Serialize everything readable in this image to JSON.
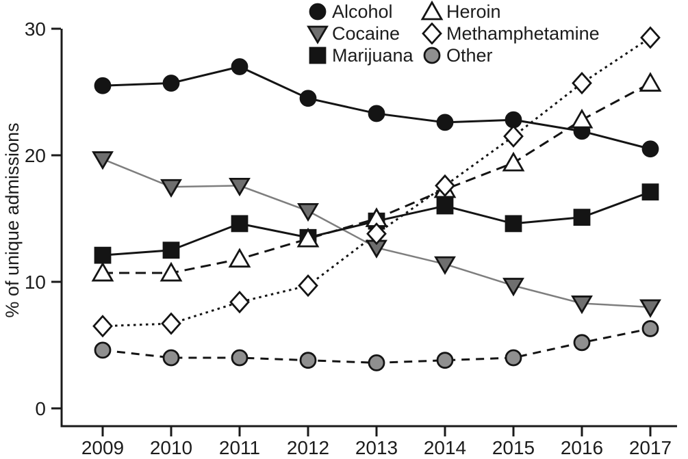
{
  "chart_data": {
    "type": "line",
    "title": "",
    "xlabel": "",
    "ylabel": "% of unique admissions",
    "categories": [
      "2009",
      "2010",
      "2011",
      "2012",
      "2013",
      "2014",
      "2015",
      "2016",
      "2017"
    ],
    "ylim": [
      0,
      30
    ],
    "y_ticks": [
      0,
      10,
      20,
      30
    ],
    "grid": false,
    "legend_position": "top-center-two-columns",
    "axis_color": "#1a1a1a",
    "text_color": "#1c1c1c",
    "series": [
      {
        "name": "Alcohol",
        "values": [
          25.5,
          25.7,
          27.0,
          24.5,
          23.3,
          22.6,
          22.8,
          21.9,
          20.5
        ],
        "marker": "circle",
        "marker_fill": "#141414",
        "marker_stroke": "#141414",
        "line_color": "#141414",
        "dash": "",
        "line_width": 3
      },
      {
        "name": "Cocaine",
        "values": [
          19.7,
          17.5,
          17.6,
          15.6,
          12.7,
          11.4,
          9.7,
          8.3,
          8.0
        ],
        "marker": "triangle-down",
        "marker_fill": "#6f6f6f",
        "marker_stroke": "#141414",
        "line_color": "#7e7e7e",
        "dash": "",
        "line_width": 2.5
      },
      {
        "name": "Marijuana",
        "values": [
          12.1,
          12.5,
          14.6,
          13.5,
          14.8,
          16.0,
          14.6,
          15.1,
          17.1
        ],
        "marker": "square",
        "marker_fill": "#141414",
        "marker_stroke": "#141414",
        "line_color": "#141414",
        "dash": "",
        "line_width": 3
      },
      {
        "name": "Heroin",
        "values": [
          10.7,
          10.7,
          11.8,
          13.4,
          15.0,
          17.3,
          19.4,
          22.8,
          25.7
        ],
        "marker": "triangle-up",
        "marker_fill": "#ffffff",
        "marker_stroke": "#141414",
        "line_color": "#141414",
        "dash": "15 9",
        "line_width": 3
      },
      {
        "name": "Methamphetamine",
        "values": [
          6.5,
          6.7,
          8.4,
          9.7,
          13.8,
          17.6,
          21.5,
          25.7,
          29.3
        ],
        "marker": "diamond",
        "marker_fill": "#ffffff",
        "marker_stroke": "#141414",
        "line_color": "#141414",
        "dash": "3.5 5.5",
        "line_width": 3
      },
      {
        "name": "Other",
        "values": [
          4.6,
          4.0,
          4.0,
          3.8,
          3.6,
          3.8,
          4.0,
          5.2,
          6.3
        ],
        "marker": "circle",
        "marker_fill": "#8f8f8f",
        "marker_stroke": "#141414",
        "line_color": "#141414",
        "dash": "12 9",
        "line_width": 3
      }
    ],
    "legend_columns": [
      [
        "Alcohol",
        "Cocaine",
        "Marijuana"
      ],
      [
        "Heroin",
        "Methamphetamine",
        "Other"
      ]
    ]
  }
}
